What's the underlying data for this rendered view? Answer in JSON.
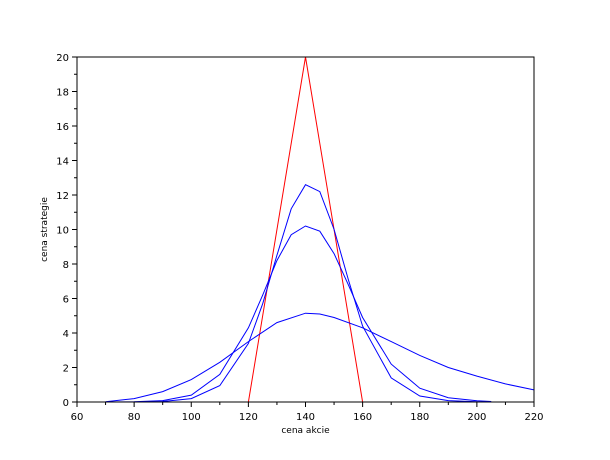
{
  "chart_data": {
    "type": "line",
    "title": "",
    "xlabel": "cena akcie",
    "ylabel": "cena strategie",
    "xlim": [
      60,
      220
    ],
    "ylim": [
      0,
      20
    ],
    "x_ticks": [
      60,
      80,
      100,
      120,
      140,
      160,
      180,
      200,
      220
    ],
    "y_ticks": [
      0,
      2,
      4,
      6,
      8,
      10,
      12,
      14,
      16,
      18,
      20
    ],
    "grid": false,
    "legend": "none",
    "series": [
      {
        "color": "#ff0000",
        "x": [
          120,
          140,
          160
        ],
        "y": [
          0,
          20,
          0
        ]
      },
      {
        "color": "#0000ff",
        "x": [
          70,
          80,
          90,
          100,
          110,
          120,
          125,
          130,
          135,
          140,
          145,
          150,
          155,
          160,
          170,
          180,
          190,
          200,
          205
        ],
        "y": [
          0.0,
          0.0,
          0.03,
          0.2,
          0.95,
          3.4,
          5.7,
          8.5,
          11.2,
          12.6,
          12.2,
          10.0,
          7.1,
          4.4,
          1.4,
          0.35,
          0.08,
          0.02,
          0.01
        ]
      },
      {
        "color": "#0000ff",
        "x": [
          70,
          80,
          90,
          100,
          110,
          120,
          125,
          130,
          135,
          140,
          145,
          150,
          155,
          160,
          170,
          180,
          190,
          200,
          205
        ],
        "y": [
          0.0,
          0.01,
          0.08,
          0.4,
          1.6,
          4.3,
          6.2,
          8.2,
          9.7,
          10.2,
          9.9,
          8.6,
          6.8,
          4.9,
          2.2,
          0.8,
          0.25,
          0.07,
          0.03
        ]
      },
      {
        "color": "#0000ff",
        "x": [
          70,
          80,
          90,
          100,
          110,
          120,
          130,
          140,
          145,
          150,
          160,
          170,
          180,
          190,
          200,
          210,
          220
        ],
        "y": [
          0.02,
          0.2,
          0.6,
          1.3,
          2.3,
          3.5,
          4.6,
          5.15,
          5.1,
          4.9,
          4.3,
          3.5,
          2.7,
          2.0,
          1.5,
          1.05,
          0.7
        ]
      }
    ]
  }
}
